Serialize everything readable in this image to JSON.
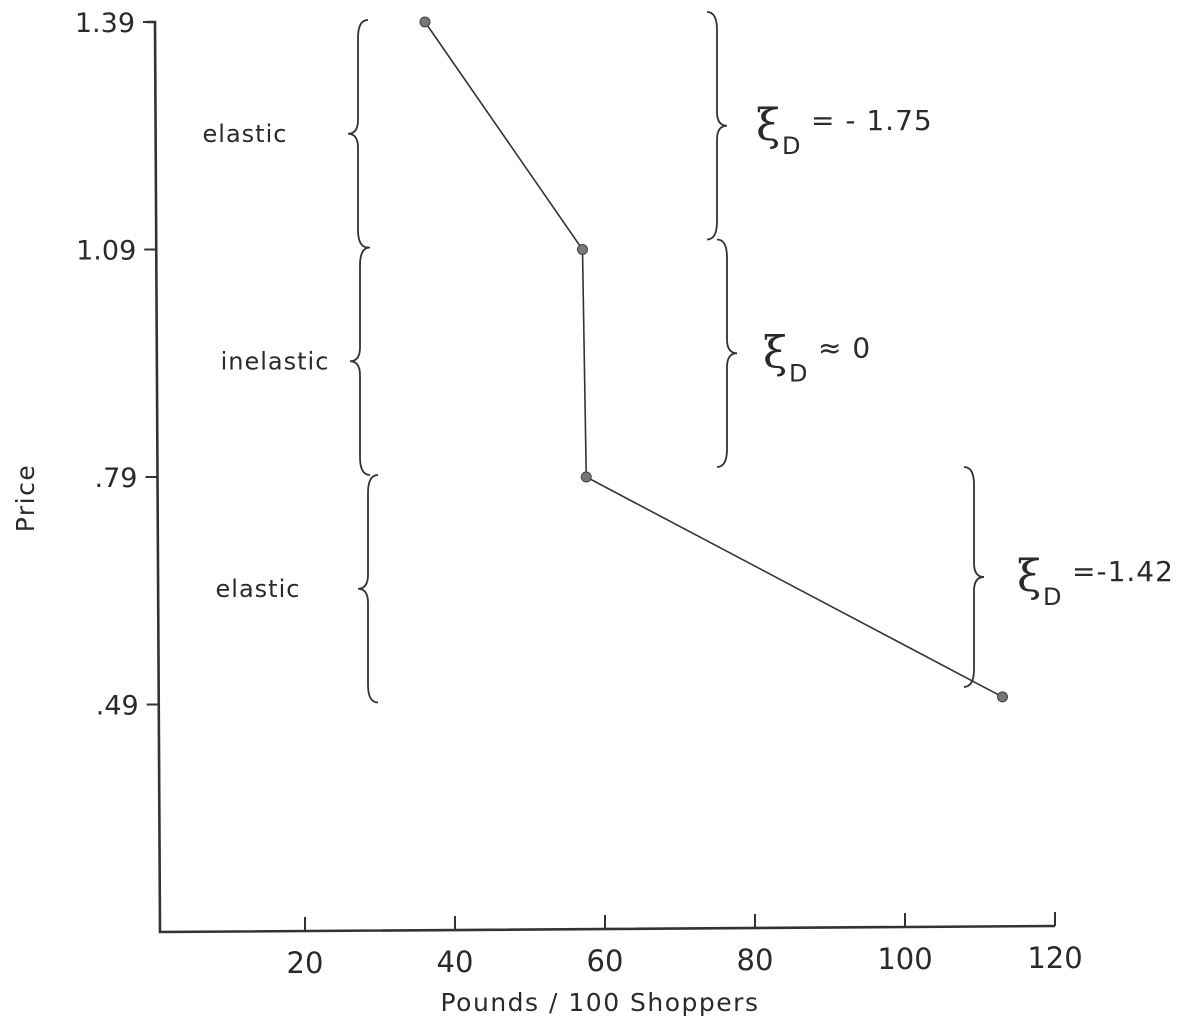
{
  "chart_data": {
    "type": "line",
    "xlabel": "Pounds / 100 Shoppers",
    "ylabel": "Price",
    "xlim": [
      0,
      120
    ],
    "ylim": [
      0.19,
      1.39
    ],
    "x_ticks": [
      20,
      40,
      60,
      80,
      100,
      120
    ],
    "x_tick_labels": [
      "20",
      "40",
      "60",
      "80",
      "100",
      "120"
    ],
    "y_ticks": [
      1.39,
      1.09,
      0.79,
      0.49
    ],
    "y_tick_labels": [
      "1.39",
      "1.09",
      ".79",
      ".49"
    ],
    "grid": false,
    "series": [
      {
        "x": [
          36,
          57,
          57.5,
          113
        ],
        "y": [
          1.39,
          1.09,
          0.79,
          0.5
        ]
      }
    ],
    "region_labels": [
      {
        "text": "elastic",
        "y_range": [
          1.09,
          1.39
        ]
      },
      {
        "text": "inelastic",
        "y_range": [
          0.79,
          1.09
        ]
      },
      {
        "text": "elastic",
        "y_range": [
          0.49,
          0.79
        ]
      }
    ],
    "elasticity_annotations": [
      {
        "symbol": "ξ",
        "subscript": "D",
        "text": "= - 1.75",
        "y_range": [
          1.09,
          1.39
        ]
      },
      {
        "symbol": "ξ",
        "subscript": "D",
        "text": "≈ 0",
        "y_range": [
          0.79,
          1.09
        ]
      },
      {
        "symbol": "ξ",
        "subscript": "D",
        "text": "=-1.42",
        "y_range": [
          0.5,
          0.79
        ]
      }
    ]
  }
}
